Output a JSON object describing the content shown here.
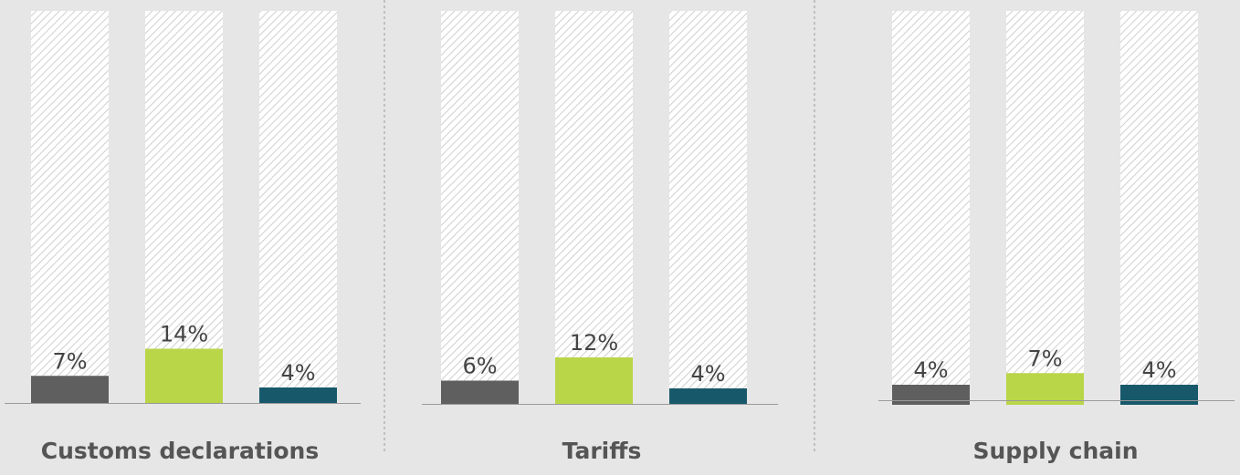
{
  "chart_data": [
    {
      "type": "bar",
      "title": "Customs declarations",
      "categories": [
        "",
        "",
        ""
      ],
      "values": [
        7,
        14,
        4
      ],
      "value_labels": [
        "7%",
        "14%",
        "4%"
      ],
      "ylim": [
        0,
        100
      ],
      "ylabel": "",
      "xlabel": "",
      "grid": false,
      "bar_background": "hatched full-height track"
    },
    {
      "type": "bar",
      "title": "Tariffs",
      "categories": [
        "",
        "",
        ""
      ],
      "values": [
        6,
        12,
        4
      ],
      "value_labels": [
        "6%",
        "12%",
        "4%"
      ],
      "ylim": [
        0,
        100
      ],
      "ylabel": "",
      "xlabel": "",
      "grid": false,
      "bar_background": "hatched full-height track"
    },
    {
      "type": "bar",
      "title": "Supply chain",
      "categories": [
        "",
        "",
        ""
      ],
      "values": [
        4,
        7,
        4
      ],
      "value_labels": [
        "4%",
        "7%",
        "4%"
      ],
      "ylim": [
        0,
        100
      ],
      "ylabel": "",
      "xlabel": "",
      "grid": false,
      "bar_background": "hatched full-height track"
    }
  ],
  "colors": {
    "series": [
      "#5f5f5f",
      "#b9d548",
      "#17596a"
    ],
    "background": "#e6e6e6",
    "track": "#ffffff",
    "hatch": "#cfcfcf",
    "baseline": "#9a9a9a",
    "divider": "#9a9a9a",
    "label_text": "#444444",
    "title_text": "#555555"
  }
}
